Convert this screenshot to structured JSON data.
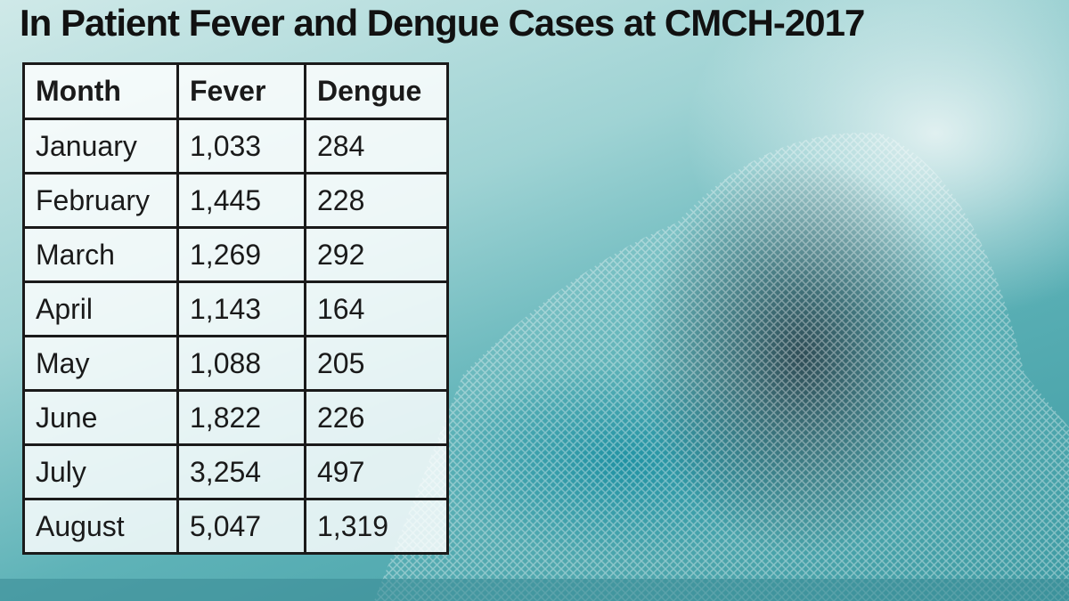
{
  "title": "In Patient Fever and Dengue Cases at CMCH-2017",
  "table": {
    "header": [
      "Month",
      "Fever",
      "Dengue"
    ],
    "rows": [
      [
        "January",
        "1,033",
        "284"
      ],
      [
        "February",
        "1,445",
        "228"
      ],
      [
        "March",
        "1,269",
        "292"
      ],
      [
        "April",
        "1,143",
        "164"
      ],
      [
        "May",
        "1,088",
        "205"
      ],
      [
        "June",
        "1,822",
        "226"
      ],
      [
        "July",
        "3,254",
        "497"
      ],
      [
        "August",
        "5,047",
        "1,319"
      ]
    ]
  }
}
